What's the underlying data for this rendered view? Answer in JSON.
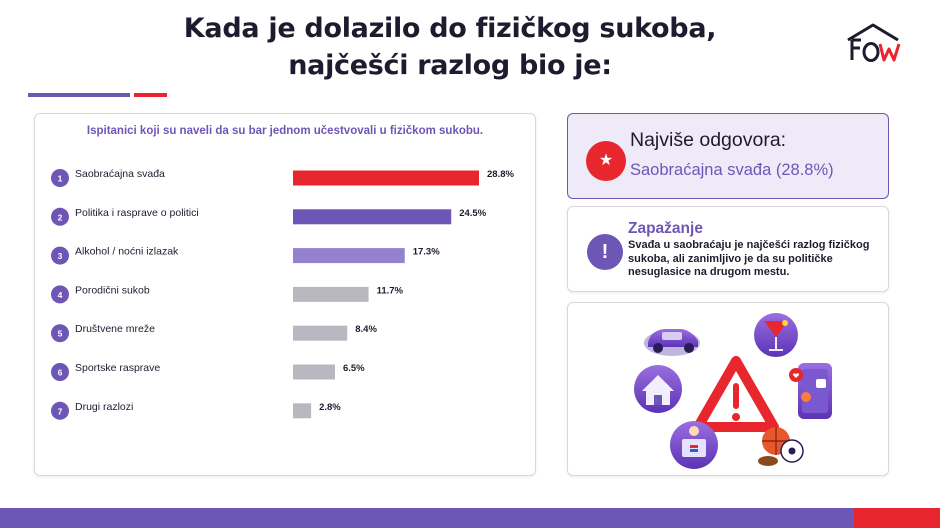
{
  "header": {
    "title_line1": "Kada je dolazilo do fizičkog sukoba,",
    "title_line2": "najčešći razlog bio je:"
  },
  "colors": {
    "accent": "#6e56b7",
    "highlight": "#e8262d",
    "bar_red": "#e8262d",
    "bar_purple": "#6e56b7",
    "bar_light_purple": "#9481cf",
    "bar_gray": "#b9b8c1"
  },
  "chart_data": {
    "type": "bar",
    "orientation": "horizontal",
    "subtitle": "Ispitanici koji su naveli da su bar jednom učestvovali u fizičkom sukobu.",
    "categories": [
      "Saobraćajna svađa",
      "Politika i rasprave o politici",
      "Alkohol / noćni izlazak",
      "Porodični sukob",
      "Društvene mreže",
      "Sportske rasprave",
      "Drugi razlozi"
    ],
    "ranks": [
      "1",
      "2",
      "3",
      "4",
      "5",
      "6",
      "7"
    ],
    "values": [
      28.8,
      24.5,
      17.3,
      11.7,
      8.4,
      6.5,
      2.8
    ],
    "value_labels": [
      "28.8%",
      "24.5%",
      "17.3%",
      "11.7%",
      "8.4%",
      "6.5%",
      "2.8%"
    ],
    "bar_colors": [
      "#e8262d",
      "#6e56b7",
      "#9481cf",
      "#b9b8c1",
      "#b9b8c1",
      "#b9b8c1",
      "#b9b8c1"
    ],
    "xlim": [
      0,
      28.8
    ],
    "grid": false,
    "legend": "none"
  },
  "highlight_card": {
    "icon": "star-icon",
    "heading": "Najviše odgovora:",
    "value": "Saobraćajna svađa (28.8%)"
  },
  "observation_card": {
    "icon": "exclamation-icon",
    "icon_glyph": "!",
    "heading": "Zapažanje",
    "text": "Svađa u saobraćaju je najčešći razlog fizičkog sukoba, ali zanimljivo je da su političke nesuglasice na drugom mestu."
  },
  "illustration": {
    "icons": [
      "car-icon",
      "cocktail-icon",
      "house-icon",
      "warning-icon",
      "social-media-icon",
      "podium-icon",
      "sports-balls-icon"
    ]
  }
}
